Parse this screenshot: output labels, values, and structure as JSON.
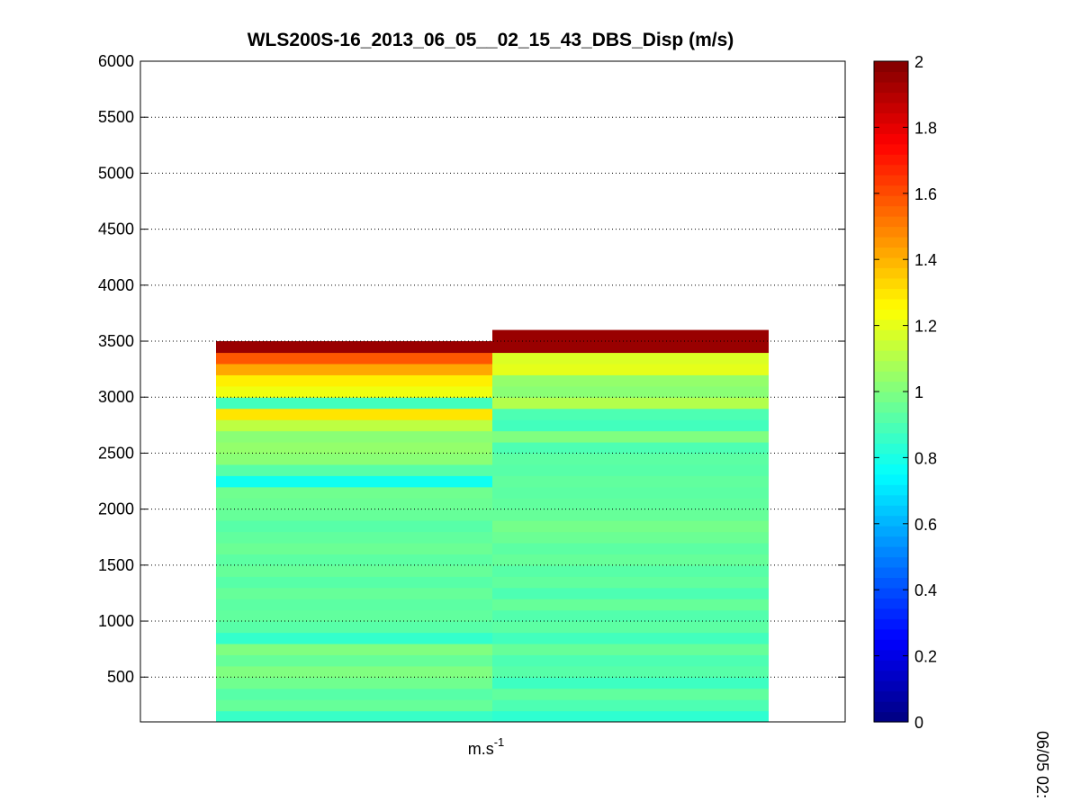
{
  "chart_data": {
    "type": "heatmap",
    "title": "WLS200S-16_2013_06_05__02_15_43_DBS_Disp (m/s)",
    "xlabel": {
      "base": "m.s",
      "superscript": "-1"
    },
    "ylabel": "",
    "ylim": [
      100,
      6000
    ],
    "yticks": [
      500,
      1000,
      1500,
      2000,
      2500,
      3000,
      3500,
      4000,
      4500,
      5000,
      5500,
      6000
    ],
    "grid": "horizontal dotted",
    "colormap": "jet",
    "clim": [
      0,
      2
    ],
    "colorbar": {
      "position": "right",
      "ticks": [
        0,
        0.2,
        0.4,
        0.6,
        0.8,
        1,
        1.2,
        1.4,
        1.6,
        1.8,
        2
      ],
      "tick_labels": [
        "0",
        "0.2",
        "0.4",
        "0.6",
        "0.8",
        "1",
        "1.2",
        "1.4",
        "1.6",
        "1.8",
        "2"
      ]
    },
    "columns": [
      {
        "bin_height_m": 100,
        "bins": [
          {
            "base": 100,
            "value": 0.86
          },
          {
            "base": 200,
            "value": 0.95
          },
          {
            "base": 300,
            "value": 0.92
          },
          {
            "base": 400,
            "value": 0.97
          },
          {
            "base": 500,
            "value": 1.0
          },
          {
            "base": 600,
            "value": 0.95
          },
          {
            "base": 700,
            "value": 1.0
          },
          {
            "base": 800,
            "value": 0.85
          },
          {
            "base": 900,
            "value": 0.92
          },
          {
            "base": 1000,
            "value": 0.94
          },
          {
            "base": 1100,
            "value": 0.93
          },
          {
            "base": 1200,
            "value": 0.95
          },
          {
            "base": 1300,
            "value": 0.92
          },
          {
            "base": 1400,
            "value": 0.95
          },
          {
            "base": 1500,
            "value": 0.93
          },
          {
            "base": 1600,
            "value": 0.96
          },
          {
            "base": 1700,
            "value": 0.94
          },
          {
            "base": 1800,
            "value": 0.92
          },
          {
            "base": 1900,
            "value": 0.95
          },
          {
            "base": 2000,
            "value": 0.96
          },
          {
            "base": 2100,
            "value": 0.97
          },
          {
            "base": 2200,
            "value": 0.78
          },
          {
            "base": 2300,
            "value": 0.92
          },
          {
            "base": 2400,
            "value": 1.02
          },
          {
            "base": 2500,
            "value": 1.04
          },
          {
            "base": 2600,
            "value": 1.02
          },
          {
            "base": 2700,
            "value": 1.12
          },
          {
            "base": 2800,
            "value": 1.3
          },
          {
            "base": 2900,
            "value": 0.88
          },
          {
            "base": 3000,
            "value": 1.22
          },
          {
            "base": 3100,
            "value": 1.28
          },
          {
            "base": 3200,
            "value": 1.42
          },
          {
            "base": 3300,
            "value": 1.58
          },
          {
            "base": 3400,
            "value": 1.95
          }
        ]
      },
      {
        "bin_height_m": 100,
        "bins": [
          {
            "base": 100,
            "value": 0.84
          },
          {
            "base": 200,
            "value": 0.9
          },
          {
            "base": 300,
            "value": 0.94
          },
          {
            "base": 400,
            "value": 0.87
          },
          {
            "base": 500,
            "value": 0.92
          },
          {
            "base": 600,
            "value": 0.9
          },
          {
            "base": 700,
            "value": 0.95
          },
          {
            "base": 800,
            "value": 0.88
          },
          {
            "base": 900,
            "value": 0.93
          },
          {
            "base": 1000,
            "value": 0.91
          },
          {
            "base": 1100,
            "value": 0.95
          },
          {
            "base": 1200,
            "value": 0.9
          },
          {
            "base": 1300,
            "value": 0.94
          },
          {
            "base": 1400,
            "value": 0.92
          },
          {
            "base": 1500,
            "value": 0.95
          },
          {
            "base": 1600,
            "value": 0.93
          },
          {
            "base": 1700,
            "value": 0.96
          },
          {
            "base": 1800,
            "value": 0.98
          },
          {
            "base": 1900,
            "value": 0.95
          },
          {
            "base": 2000,
            "value": 0.94
          },
          {
            "base": 2100,
            "value": 0.93
          },
          {
            "base": 2200,
            "value": 0.94
          },
          {
            "base": 2300,
            "value": 0.92
          },
          {
            "base": 2400,
            "value": 0.93
          },
          {
            "base": 2500,
            "value": 0.9
          },
          {
            "base": 2600,
            "value": 1.0
          },
          {
            "base": 2700,
            "value": 0.88
          },
          {
            "base": 2800,
            "value": 0.9
          },
          {
            "base": 2900,
            "value": 1.1
          },
          {
            "base": 3000,
            "value": 1.02
          },
          {
            "base": 3100,
            "value": 1.04
          },
          {
            "base": 3200,
            "value": 1.2
          },
          {
            "base": 3300,
            "value": 1.18
          },
          {
            "base": 3400,
            "value": 1.95
          },
          {
            "base": 3500,
            "value": 1.95
          }
        ]
      }
    ],
    "side_label": "06/05 02:"
  }
}
